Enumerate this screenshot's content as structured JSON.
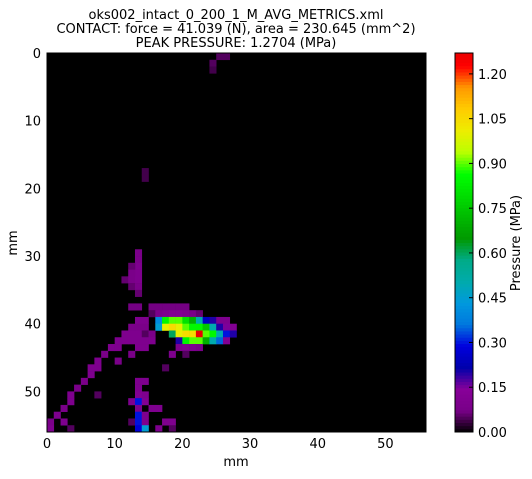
{
  "chart_data": {
    "type": "heatmap",
    "title": [
      "oks002_intact_0_200_1_M_AVG_METRICS.xml",
      "CONTACT: force = 41.039 (N), area = 230.645 (mm^2)",
      "PEAK PRESSURE: 1.2704 (MPa)"
    ],
    "x_label": "mm",
    "y_label": "mm",
    "colorbar_label": "Pressure (MPa)",
    "colormap": "nipy_spectral",
    "background": "#000000",
    "xlim": [
      0,
      56
    ],
    "ylim": [
      56,
      0
    ],
    "xticks": [
      0,
      10,
      20,
      30,
      40,
      50
    ],
    "yticks": [
      0,
      10,
      20,
      30,
      40,
      50
    ],
    "clim": [
      0,
      1.27
    ],
    "cticks": [
      {
        "value": 0,
        "label": "0.00"
      },
      {
        "value": 0.15,
        "label": "0.15"
      },
      {
        "value": 0.3,
        "label": "0.30"
      },
      {
        "value": 0.45,
        "label": "0.45"
      },
      {
        "value": 0.6,
        "label": "0.60"
      },
      {
        "value": 0.75,
        "label": "0.75"
      },
      {
        "value": 0.9,
        "label": "0.90"
      },
      {
        "value": 1.05,
        "label": "1.05"
      },
      {
        "value": 1.2,
        "label": "1.20"
      }
    ],
    "cells": [
      [
        25,
        0,
        0.05
      ],
      [
        26,
        0,
        0.05
      ],
      [
        24,
        1,
        0.05
      ],
      [
        24,
        2,
        0.04
      ],
      [
        14,
        17,
        0.04
      ],
      [
        14,
        18,
        0.04
      ],
      [
        13,
        29,
        0.08
      ],
      [
        13,
        30,
        0.08
      ],
      [
        13,
        31,
        0.1
      ],
      [
        12,
        31,
        0.06
      ],
      [
        13,
        32,
        0.1
      ],
      [
        12,
        32,
        0.08
      ],
      [
        11,
        33,
        0.06
      ],
      [
        12,
        33,
        0.08
      ],
      [
        13,
        33,
        0.1
      ],
      [
        12,
        34,
        0.06
      ],
      [
        13,
        34,
        0.08
      ],
      [
        13,
        35,
        0.06
      ],
      [
        12,
        37,
        0.07
      ],
      [
        13,
        37,
        0.07
      ],
      [
        15,
        37,
        0.07
      ],
      [
        16,
        37,
        0.07
      ],
      [
        17,
        37,
        0.07
      ],
      [
        18,
        37,
        0.07
      ],
      [
        19,
        37,
        0.07
      ],
      [
        20,
        37,
        0.07
      ],
      [
        15,
        38,
        0.05
      ],
      [
        16,
        38,
        0.08
      ],
      [
        17,
        38,
        0.1
      ],
      [
        18,
        38,
        0.12
      ],
      [
        19,
        38,
        0.12
      ],
      [
        20,
        38,
        0.1
      ],
      [
        21,
        38,
        0.08
      ],
      [
        22,
        38,
        0.06
      ],
      [
        13,
        39,
        0.1
      ],
      [
        14,
        39,
        0.1
      ],
      [
        16,
        39,
        0.4
      ],
      [
        17,
        39,
        0.85
      ],
      [
        18,
        39,
        0.9
      ],
      [
        19,
        39,
        0.9
      ],
      [
        20,
        39,
        0.8
      ],
      [
        21,
        39,
        0.7
      ],
      [
        22,
        39,
        0.5
      ],
      [
        23,
        39,
        0.25
      ],
      [
        24,
        39,
        0.2
      ],
      [
        25,
        39,
        0.1
      ],
      [
        26,
        39,
        0.1
      ],
      [
        12,
        40,
        0.08
      ],
      [
        13,
        40,
        0.08
      ],
      [
        14,
        40,
        0.08
      ],
      [
        16,
        40,
        0.45
      ],
      [
        17,
        40,
        1.0
      ],
      [
        18,
        40,
        1.05
      ],
      [
        19,
        40,
        1.0
      ],
      [
        20,
        40,
        0.9
      ],
      [
        21,
        40,
        0.85
      ],
      [
        22,
        40,
        0.85
      ],
      [
        23,
        40,
        0.75
      ],
      [
        24,
        40,
        0.5
      ],
      [
        25,
        40,
        0.2
      ],
      [
        26,
        40,
        0.15
      ],
      [
        27,
        40,
        0.12
      ],
      [
        11,
        41,
        0.1
      ],
      [
        12,
        41,
        0.1
      ],
      [
        13,
        41,
        0.1
      ],
      [
        14,
        41,
        0.05
      ],
      [
        15,
        41,
        0.08
      ],
      [
        18,
        41,
        0.6
      ],
      [
        19,
        41,
        1.0
      ],
      [
        20,
        41,
        1.05
      ],
      [
        21,
        41,
        1.05
      ],
      [
        22,
        41,
        1.27
      ],
      [
        23,
        41,
        0.9
      ],
      [
        24,
        41,
        0.85
      ],
      [
        25,
        41,
        0.5
      ],
      [
        26,
        41,
        0.3
      ],
      [
        27,
        41,
        0.2
      ],
      [
        10,
        42,
        0.1
      ],
      [
        11,
        42,
        0.1
      ],
      [
        12,
        42,
        0.1
      ],
      [
        13,
        42,
        0.1
      ],
      [
        14,
        42,
        0.1
      ],
      [
        15,
        42,
        0.1
      ],
      [
        19,
        42,
        0.2
      ],
      [
        20,
        42,
        0.85
      ],
      [
        21,
        42,
        0.9
      ],
      [
        22,
        42,
        0.9
      ],
      [
        23,
        42,
        0.7
      ],
      [
        24,
        42,
        0.5
      ],
      [
        25,
        42,
        0.35
      ],
      [
        26,
        42,
        0.12
      ],
      [
        9,
        43,
        0.1
      ],
      [
        10,
        43,
        0.1
      ],
      [
        13,
        43,
        0.1
      ],
      [
        14,
        43,
        0.1
      ],
      [
        19,
        43,
        0.1
      ],
      [
        20,
        43,
        0.12
      ],
      [
        21,
        43,
        0.1
      ],
      [
        22,
        43,
        0.08
      ],
      [
        8,
        44,
        0.08
      ],
      [
        12,
        44,
        0.08
      ],
      [
        18,
        44,
        0.1
      ],
      [
        20,
        44,
        0.05
      ],
      [
        7,
        45,
        0.1
      ],
      [
        10,
        45,
        0.08
      ],
      [
        6,
        46,
        0.1
      ],
      [
        7,
        46,
        0.1
      ],
      [
        17,
        46,
        0.05
      ],
      [
        6,
        47,
        0.1
      ],
      [
        5,
        48,
        0.08
      ],
      [
        13,
        48,
        0.1
      ],
      [
        14,
        48,
        0.1
      ],
      [
        4,
        49,
        0.08
      ],
      [
        13,
        49,
        0.1
      ],
      [
        3,
        50,
        0.1
      ],
      [
        7,
        50,
        0.05
      ],
      [
        13,
        50,
        0.12
      ],
      [
        14,
        50,
        0.1
      ],
      [
        3,
        51,
        0.1
      ],
      [
        12,
        51,
        0.1
      ],
      [
        13,
        51,
        0.3
      ],
      [
        14,
        51,
        0.12
      ],
      [
        2,
        52,
        0.08
      ],
      [
        13,
        52,
        0.1
      ],
      [
        15,
        52,
        0.1
      ],
      [
        16,
        52,
        0.1
      ],
      [
        1,
        53,
        0.1
      ],
      [
        13,
        53,
        0.3
      ],
      [
        14,
        53,
        0.1
      ],
      [
        0,
        54,
        0.08
      ],
      [
        2,
        54,
        0.1
      ],
      [
        12,
        54,
        0.05
      ],
      [
        13,
        54,
        0.3
      ],
      [
        14,
        54,
        0.1
      ],
      [
        17,
        54,
        0.1
      ],
      [
        18,
        54,
        0.1
      ],
      [
        0,
        55,
        0.1
      ],
      [
        3,
        55,
        0.05
      ],
      [
        13,
        55,
        0.28
      ],
      [
        14,
        55,
        0.45
      ],
      [
        16,
        55,
        0.1
      ],
      [
        18,
        55,
        0.05
      ]
    ]
  }
}
